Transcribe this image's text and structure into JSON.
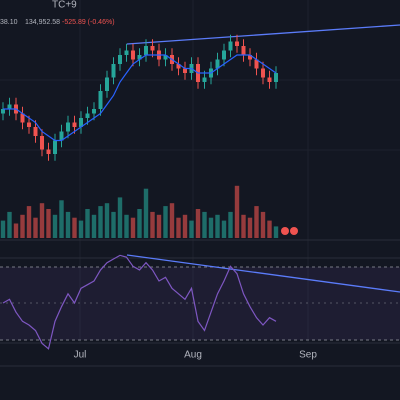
{
  "header": {
    "timezone": "TC+9",
    "price": "38.10",
    "value": "134,952.58",
    "change": "-525.89 (-0.46%)"
  },
  "chart_data": {
    "type": "candlestick",
    "x_labels": [
      "Jul",
      "Aug",
      "Sep"
    ],
    "open": [
      117,
      118,
      119,
      117,
      115,
      114,
      112,
      109,
      108,
      111,
      113,
      115,
      114,
      116,
      117,
      118,
      122,
      125,
      128,
      130,
      131,
      129,
      130,
      132,
      131,
      129,
      130,
      128,
      127,
      126,
      128,
      124,
      125,
      127,
      129,
      131,
      133,
      132,
      130,
      129,
      127,
      125,
      124
    ],
    "high": [
      119.5,
      120.5,
      120.5,
      118.5,
      116.5,
      115.5,
      113.5,
      110.5,
      112.5,
      114.5,
      116.5,
      116.5,
      117.5,
      118.5,
      119.5,
      123.5,
      126.5,
      129.5,
      131.5,
      132.5,
      132.5,
      131.5,
      133.5,
      133.5,
      132.5,
      131.5,
      131.5,
      129.5,
      128.5,
      129.5,
      129.5,
      126.5,
      128.5,
      130.5,
      132.5,
      134.5,
      134.5,
      133.5,
      131.5,
      130.5,
      128.5,
      126.5,
      127.5
    ],
    "low": [
      115.5,
      116.5,
      115.5,
      113.5,
      112.5,
      110.5,
      107.5,
      106.5,
      106.5,
      109.5,
      111.5,
      112.5,
      112.5,
      114.5,
      115.5,
      116.5,
      120.5,
      123.5,
      126.5,
      128.5,
      127.5,
      127.5,
      128.5,
      129.5,
      127.5,
      127.5,
      126.5,
      125.5,
      124.5,
      124.5,
      122.5,
      122.5,
      123.5,
      125.5,
      127.5,
      129.5,
      130.5,
      128.5,
      127.5,
      125.5,
      123.5,
      122.5,
      122.5
    ],
    "close": [
      118,
      119,
      117,
      115,
      114,
      112,
      109,
      108,
      111,
      113,
      115,
      114,
      116,
      117,
      118,
      122,
      125,
      128,
      130,
      131,
      129,
      130,
      132,
      131,
      129,
      130,
      128,
      127,
      126,
      128,
      124,
      125,
      127,
      129,
      131,
      133,
      132,
      130,
      129,
      127,
      125,
      124,
      126
    ],
    "ma": [
      118,
      118,
      118,
      117,
      116,
      115,
      113,
      112,
      111,
      111,
      112,
      113,
      114,
      115,
      116,
      117,
      119,
      121,
      124,
      126,
      128,
      129,
      130,
      130,
      130,
      130,
      129,
      128,
      127,
      127,
      126,
      126,
      126,
      127,
      128,
      129,
      130,
      130,
      130,
      129,
      128,
      127,
      126
    ],
    "ylim": [
      100,
      140
    ],
    "volume": [
      30,
      45,
      25,
      40,
      55,
      35,
      60,
      50,
      40,
      65,
      45,
      35,
      30,
      50,
      40,
      55,
      60,
      45,
      70,
      40,
      35,
      50,
      85,
      45,
      40,
      55,
      60,
      35,
      40,
      30,
      50,
      45,
      35,
      40,
      30,
      45,
      90,
      40,
      35,
      55,
      45,
      30,
      20
    ],
    "volume_ylim": [
      0,
      100
    ],
    "rsi": [
      50,
      52,
      45,
      40,
      38,
      35,
      28,
      25,
      40,
      48,
      55,
      50,
      58,
      60,
      62,
      68,
      72,
      74,
      76,
      75,
      70,
      68,
      72,
      68,
      62,
      64,
      58,
      55,
      52,
      58,
      40,
      35,
      45,
      55,
      62,
      70,
      66,
      55,
      48,
      42,
      38,
      42,
      40
    ],
    "rsi_ylim": [
      20,
      80
    ],
    "up_color": "#26a69a",
    "down_color": "#ef5350",
    "ma_color": "#2962ff",
    "rsi_color": "#7e57c2"
  }
}
